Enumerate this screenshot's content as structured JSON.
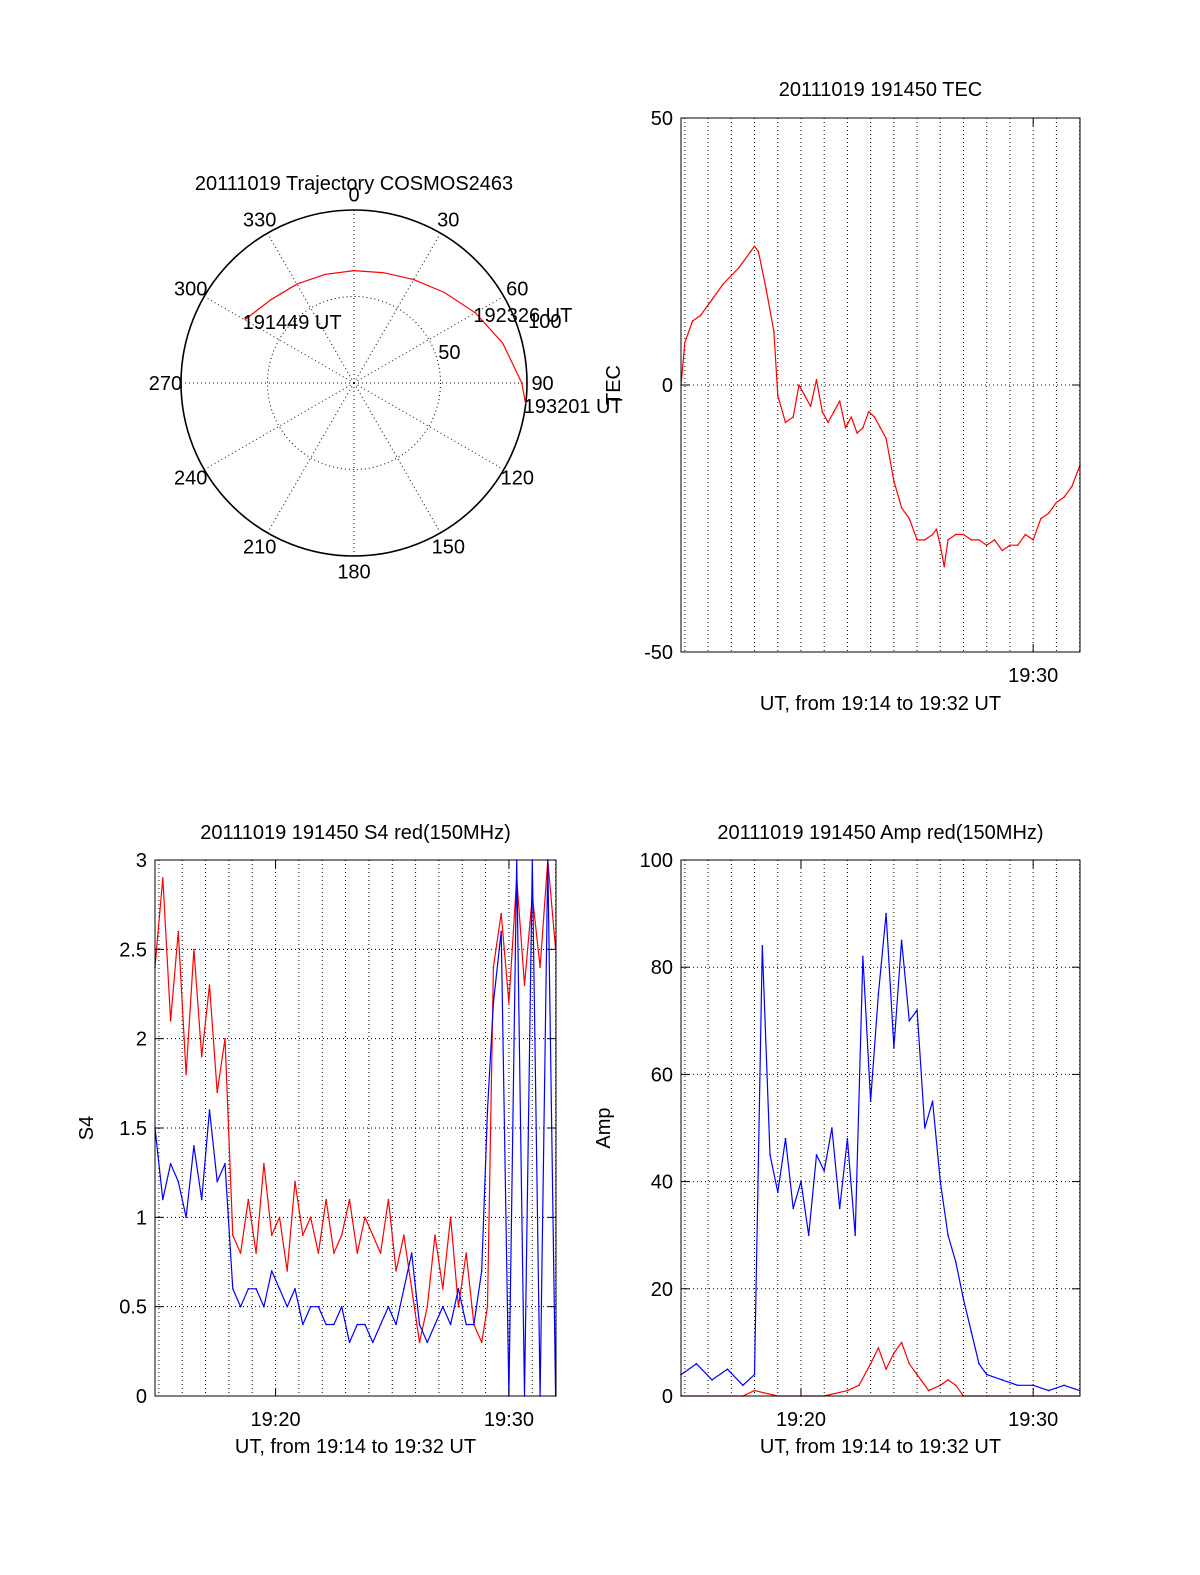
{
  "colors": {
    "red": "#ff0000",
    "blue": "#0000ff",
    "axis": "#000000",
    "grid": "#000000"
  },
  "chart_data": [
    {
      "id": "trajectory",
      "type": "polar",
      "title": "20111019 Trajectory COSMOS2463",
      "angle_labels": [
        "0",
        "30",
        "60",
        "90",
        "120",
        "150",
        "180",
        "210",
        "240",
        "270",
        "300",
        "330"
      ],
      "angle_label_values": [
        0,
        30,
        60,
        90,
        120,
        150,
        180,
        210,
        240,
        270,
        300,
        330
      ],
      "radial_labels": [
        "50",
        "100"
      ],
      "radial_label_values": [
        50,
        100
      ],
      "radial_max": 100,
      "grid": true,
      "track": {
        "color": "red",
        "points": [
          [
            300,
            73
          ],
          [
            315,
            68
          ],
          [
            330,
            66
          ],
          [
            345,
            65
          ],
          [
            0,
            65
          ],
          [
            15,
            66
          ],
          [
            30,
            69
          ],
          [
            45,
            74
          ],
          [
            60,
            81
          ],
          [
            75,
            89
          ],
          [
            90,
            97
          ],
          [
            97,
            100
          ]
        ]
      },
      "annotations": [
        {
          "text": "191449 UT",
          "azimuth": 300,
          "radius": 73
        },
        {
          "text": "192326 UT",
          "azimuth": 60,
          "radius": 81
        },
        {
          "text": "193201 UT",
          "azimuth": 97,
          "radius": 100
        }
      ]
    },
    {
      "id": "tec",
      "type": "line",
      "title": "20111019 191450 TEC",
      "xlabel": "UT, from 19:14 to 19:32 UT",
      "ylabel": "TEC",
      "xlim": [
        "19:14:50",
        "19:32:01"
      ],
      "ylim": [
        -50,
        50
      ],
      "yticks": [
        -50,
        0,
        50
      ],
      "xticks": [
        "19:30"
      ],
      "grid": true,
      "series": [
        {
          "color": "red",
          "x": [
            "19:14:50",
            "19:15:00",
            "19:15:20",
            "19:15:40",
            "19:16:10",
            "19:16:40",
            "19:17:20",
            "19:17:50",
            "19:18:00",
            "19:18:10",
            "19:18:30",
            "19:18:50",
            "19:19:00",
            "19:19:20",
            "19:19:40",
            "19:19:55",
            "19:20:10",
            "19:20:25",
            "19:20:40",
            "19:20:55",
            "19:21:10",
            "19:21:25",
            "19:21:40",
            "19:21:55",
            "19:22:10",
            "19:22:25",
            "19:22:40",
            "19:22:55",
            "19:23:10",
            "19:23:25",
            "19:23:40",
            "19:24:00",
            "19:24:20",
            "19:24:40",
            "19:25:00",
            "19:25:20",
            "19:25:40",
            "19:25:50",
            "19:26:00",
            "19:26:10",
            "19:26:20",
            "19:26:40",
            "19:27:00",
            "19:27:20",
            "19:27:40",
            "19:28:00",
            "19:28:20",
            "19:28:40",
            "19:29:00",
            "19:29:20",
            "19:29:40",
            "19:30:00",
            "19:30:20",
            "19:30:40",
            "19:31:00",
            "19:31:20",
            "19:31:40",
            "19:32:01"
          ],
          "y": [
            0,
            8,
            12,
            13,
            16,
            19,
            22,
            25,
            26,
            25,
            18,
            10,
            -2,
            -7,
            -6,
            0,
            -2,
            -4,
            1,
            -5,
            -7,
            -5,
            -3,
            -8,
            -6,
            -9,
            -8,
            -5,
            -6,
            -8,
            -10,
            -18,
            -23,
            -25,
            -29,
            -29,
            -28,
            -27,
            -30,
            -34,
            -29,
            -28,
            -28,
            -29,
            -29,
            -30,
            -29,
            -31,
            -30,
            -30,
            -28,
            -29,
            -25,
            -24,
            -22,
            -21,
            -19,
            -15
          ]
        }
      ]
    },
    {
      "id": "s4",
      "type": "line",
      "title": "20111019 191450 S4 red(150MHz)",
      "xlabel": "UT, from 19:14 to 19:32 UT",
      "ylabel": "S4",
      "xlim": [
        "19:14:50",
        "19:32:01"
      ],
      "ylim": [
        0,
        3
      ],
      "yticks": [
        0,
        0.5,
        1,
        1.5,
        2,
        2.5,
        3
      ],
      "ytick_labels": [
        "0",
        "0.5",
        "1",
        "1.5",
        "2",
        "2.5",
        "3"
      ],
      "xticks": [
        "19:20",
        "19:30"
      ],
      "grid": true,
      "series": [
        {
          "color": "red",
          "x": [
            "19:14:50",
            "19:15:10",
            "19:15:30",
            "19:15:50",
            "19:16:10",
            "19:16:30",
            "19:16:50",
            "19:17:10",
            "19:17:30",
            "19:17:50",
            "19:18:10",
            "19:18:30",
            "19:18:50",
            "19:19:10",
            "19:19:30",
            "19:19:50",
            "19:20:10",
            "19:20:30",
            "19:20:50",
            "19:21:10",
            "19:21:30",
            "19:21:50",
            "19:22:10",
            "19:22:30",
            "19:22:50",
            "19:23:10",
            "19:23:30",
            "19:23:50",
            "19:24:10",
            "19:24:30",
            "19:24:50",
            "19:25:10",
            "19:25:30",
            "19:25:50",
            "19:26:10",
            "19:26:30",
            "19:26:50",
            "19:27:10",
            "19:27:30",
            "19:27:50",
            "19:28:10",
            "19:28:30",
            "19:28:50",
            "19:29:05",
            "19:29:20",
            "19:29:40",
            "19:30:00",
            "19:30:20",
            "19:30:40",
            "19:31:00",
            "19:31:20",
            "19:31:40",
            "19:32:00"
          ],
          "y": [
            2.4,
            2.9,
            2.1,
            2.6,
            1.8,
            2.5,
            1.9,
            2.3,
            1.7,
            2.0,
            0.9,
            0.8,
            1.1,
            0.8,
            1.3,
            0.9,
            1.0,
            0.7,
            1.2,
            0.9,
            1.0,
            0.8,
            1.1,
            0.8,
            0.9,
            1.1,
            0.8,
            1.0,
            0.9,
            0.8,
            1.1,
            0.7,
            0.9,
            0.6,
            0.3,
            0.5,
            0.9,
            0.6,
            1.0,
            0.5,
            0.8,
            0.4,
            0.3,
            0.5,
            2.4,
            2.7,
            2.2,
            2.9,
            2.3,
            2.8,
            2.4,
            3.0,
            2.5
          ]
        },
        {
          "color": "blue",
          "x": [
            "19:14:50",
            "19:15:10",
            "19:15:30",
            "19:15:50",
            "19:16:10",
            "19:16:30",
            "19:16:50",
            "19:17:10",
            "19:17:30",
            "19:17:50",
            "19:18:10",
            "19:18:30",
            "19:18:50",
            "19:19:10",
            "19:19:30",
            "19:19:50",
            "19:20:10",
            "19:20:30",
            "19:20:50",
            "19:21:10",
            "19:21:30",
            "19:21:50",
            "19:22:10",
            "19:22:30",
            "19:22:50",
            "19:23:10",
            "19:23:30",
            "19:23:50",
            "19:24:10",
            "19:24:30",
            "19:24:50",
            "19:25:10",
            "19:25:30",
            "19:25:50",
            "19:26:10",
            "19:26:30",
            "19:26:50",
            "19:27:10",
            "19:27:30",
            "19:27:50",
            "19:28:10",
            "19:28:30",
            "19:28:50",
            "19:29:05",
            "19:29:20",
            "19:29:40",
            "19:30:00",
            "19:30:20",
            "19:30:40",
            "19:31:00",
            "19:31:20",
            "19:31:40",
            "19:32:00"
          ],
          "y": [
            1.5,
            1.1,
            1.3,
            1.2,
            1.0,
            1.4,
            1.1,
            1.6,
            1.2,
            1.3,
            0.6,
            0.5,
            0.6,
            0.6,
            0.5,
            0.7,
            0.6,
            0.5,
            0.6,
            0.4,
            0.5,
            0.5,
            0.4,
            0.4,
            0.5,
            0.3,
            0.4,
            0.4,
            0.3,
            0.4,
            0.5,
            0.4,
            0.6,
            0.8,
            0.4,
            0.3,
            0.4,
            0.5,
            0.4,
            0.6,
            0.4,
            0.4,
            0.7,
            1.6,
            2.2,
            2.6,
            0,
            3.0,
            0,
            3.0,
            0,
            3.0,
            0
          ]
        }
      ]
    },
    {
      "id": "amp",
      "type": "line",
      "title": "20111019 191450 Amp red(150MHz)",
      "xlabel": "UT, from 19:14 to 19:32 UT",
      "ylabel": "Amp",
      "xlim": [
        "19:14:50",
        "19:32:01"
      ],
      "ylim": [
        0,
        100
      ],
      "yticks": [
        0,
        20,
        40,
        60,
        80,
        100
      ],
      "xticks": [
        "19:20",
        "19:30"
      ],
      "grid": true,
      "series": [
        {
          "color": "blue",
          "x": [
            "19:14:50",
            "19:15:30",
            "19:16:10",
            "19:16:50",
            "19:17:30",
            "19:18:00",
            "19:18:20",
            "19:18:40",
            "19:19:00",
            "19:19:20",
            "19:19:40",
            "19:20:00",
            "19:20:20",
            "19:20:40",
            "19:21:00",
            "19:21:20",
            "19:21:40",
            "19:22:00",
            "19:22:20",
            "19:22:40",
            "19:23:00",
            "19:23:20",
            "19:23:40",
            "19:24:00",
            "19:24:20",
            "19:24:40",
            "19:25:00",
            "19:25:20",
            "19:25:40",
            "19:26:00",
            "19:26:20",
            "19:26:40",
            "19:27:00",
            "19:27:20",
            "19:27:40",
            "19:28:00",
            "19:28:40",
            "19:29:20",
            "19:30:00",
            "19:30:40",
            "19:31:20",
            "19:32:00"
          ],
          "y": [
            4,
            6,
            3,
            5,
            2,
            4,
            84,
            45,
            38,
            48,
            35,
            40,
            30,
            45,
            42,
            50,
            35,
            48,
            30,
            82,
            55,
            75,
            90,
            65,
            85,
            70,
            72,
            50,
            55,
            40,
            30,
            25,
            18,
            12,
            6,
            4,
            3,
            2,
            2,
            1,
            2,
            1
          ]
        },
        {
          "color": "red",
          "x": [
            "19:14:50",
            "19:17:30",
            "19:18:00",
            "19:19:00",
            "19:20:00",
            "19:21:00",
            "19:22:00",
            "19:22:30",
            "19:23:00",
            "19:23:20",
            "19:23:40",
            "19:24:00",
            "19:24:20",
            "19:24:40",
            "19:25:00",
            "19:25:30",
            "19:26:00",
            "19:26:20",
            "19:26:40",
            "19:27:00",
            "19:28:00",
            "19:30:00",
            "19:32:00"
          ],
          "y": [
            0,
            0,
            1,
            0,
            0,
            0,
            1,
            2,
            6,
            9,
            5,
            8,
            10,
            6,
            4,
            1,
            2,
            3,
            2,
            0,
            0,
            0,
            0
          ]
        }
      ]
    }
  ]
}
